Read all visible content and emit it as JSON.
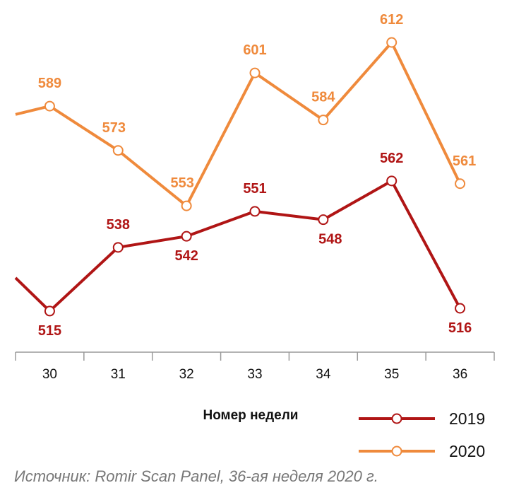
{
  "chart_data": {
    "type": "line",
    "xlabel": "Номер недели",
    "ylabel": "",
    "categories": [
      "30",
      "31",
      "32",
      "33",
      "34",
      "35",
      "36"
    ],
    "ylim": [
      490,
      625
    ],
    "grid": false,
    "legend_position": "bottom-right",
    "series": [
      {
        "name": "2019",
        "color": "#b01515",
        "values": [
          515,
          538,
          542,
          551,
          548,
          562,
          516
        ],
        "before_first": 527
      },
      {
        "name": "2020",
        "color": "#ef8a3c",
        "values": [
          589,
          573,
          553,
          601,
          584,
          612,
          561
        ],
        "before_first": 586
      }
    ]
  },
  "source_text": "Источник: Romir Scan Panel, 36-ая неделя 2020 г."
}
